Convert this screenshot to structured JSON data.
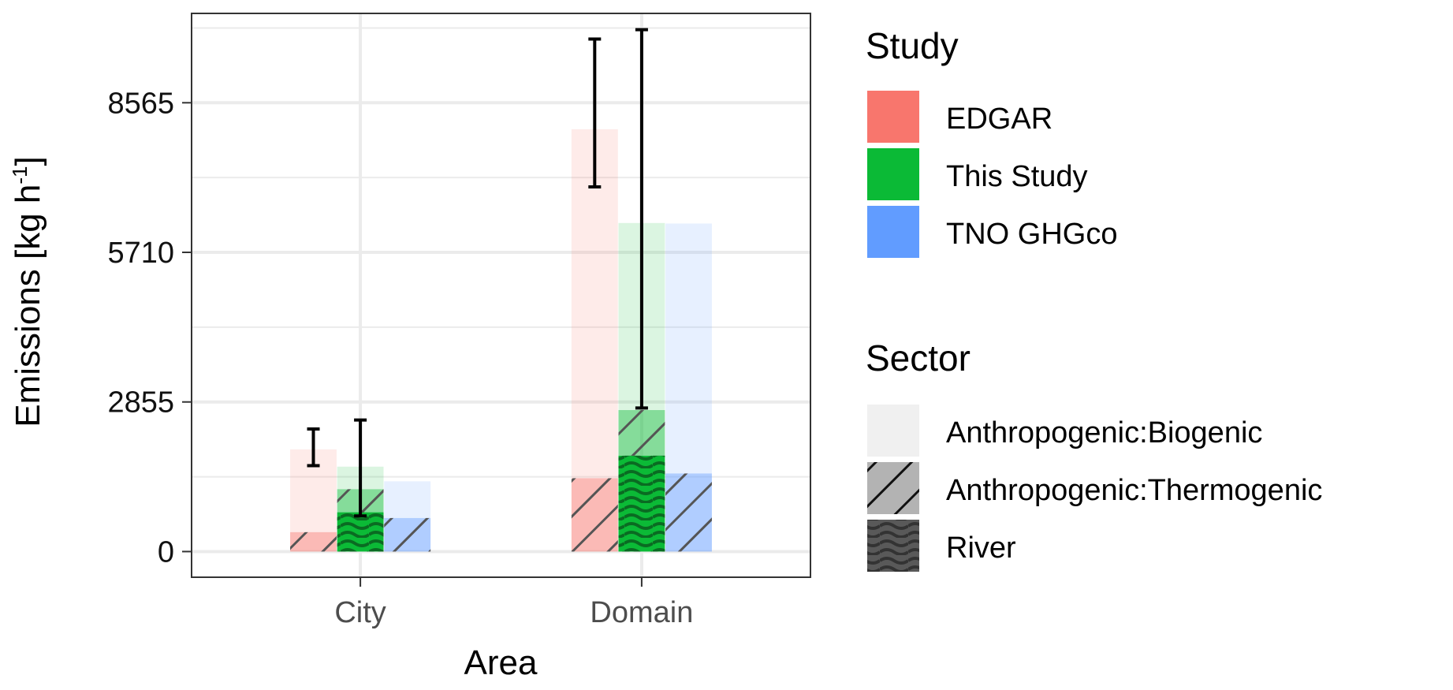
{
  "chart_data": {
    "type": "bar",
    "xlabel": "Area",
    "ylabel": "Emissions [kg h-1]",
    "ylabel_parts": {
      "main": "Emissions [kg h",
      "sup": "-1",
      "close": "]"
    },
    "categories": [
      "City",
      "Domain"
    ],
    "yticks": [
      0,
      2855,
      5710,
      8565
    ],
    "ytick_labels": [
      "0",
      "2855",
      "5710",
      "8565"
    ],
    "ylim": [
      -490,
      10270
    ],
    "grid": true,
    "legend_position": "right",
    "studies": [
      "EDGAR",
      "This Study",
      "TNO GHGco"
    ],
    "study_colors": {
      "EDGAR": "#F8766D",
      "This Study": "#0BBA36",
      "TNO GHGco": "#619CFF"
    },
    "sectors": [
      "Anthropogenic:Biogenic",
      "Anthropogenic:Thermogenic",
      "River"
    ],
    "series": [
      {
        "area": "City",
        "study": "EDGAR",
        "biogenic": 1580,
        "thermogenic": 370,
        "river": 0,
        "error": [
          1640,
          2340
        ]
      },
      {
        "area": "City",
        "study": "This Study",
        "biogenic": 430,
        "thermogenic": 440,
        "river": 750,
        "error": [
          680,
          2510
        ]
      },
      {
        "area": "City",
        "study": "TNO GHGco",
        "biogenic": 700,
        "thermogenic": 640,
        "river": 0
      },
      {
        "area": "Domain",
        "study": "EDGAR",
        "biogenic": 6660,
        "thermogenic": 1400,
        "river": 0,
        "error": [
          6960,
          9780
        ]
      },
      {
        "area": "Domain",
        "study": "This Study",
        "biogenic": 3570,
        "thermogenic": 870,
        "river": 1830,
        "error": [
          2740,
          9960
        ]
      },
      {
        "area": "Domain",
        "study": "TNO GHGco",
        "biogenic": 4770,
        "thermogenic": 1490,
        "river": 0
      }
    ]
  },
  "legend": {
    "study_title": "Study",
    "study_items": [
      "EDGAR",
      "This Study",
      "TNO GHGco"
    ],
    "sector_title": "Sector",
    "sector_items": [
      "Anthropogenic:Biogenic",
      "Anthropogenic:Thermogenic",
      "River"
    ]
  }
}
